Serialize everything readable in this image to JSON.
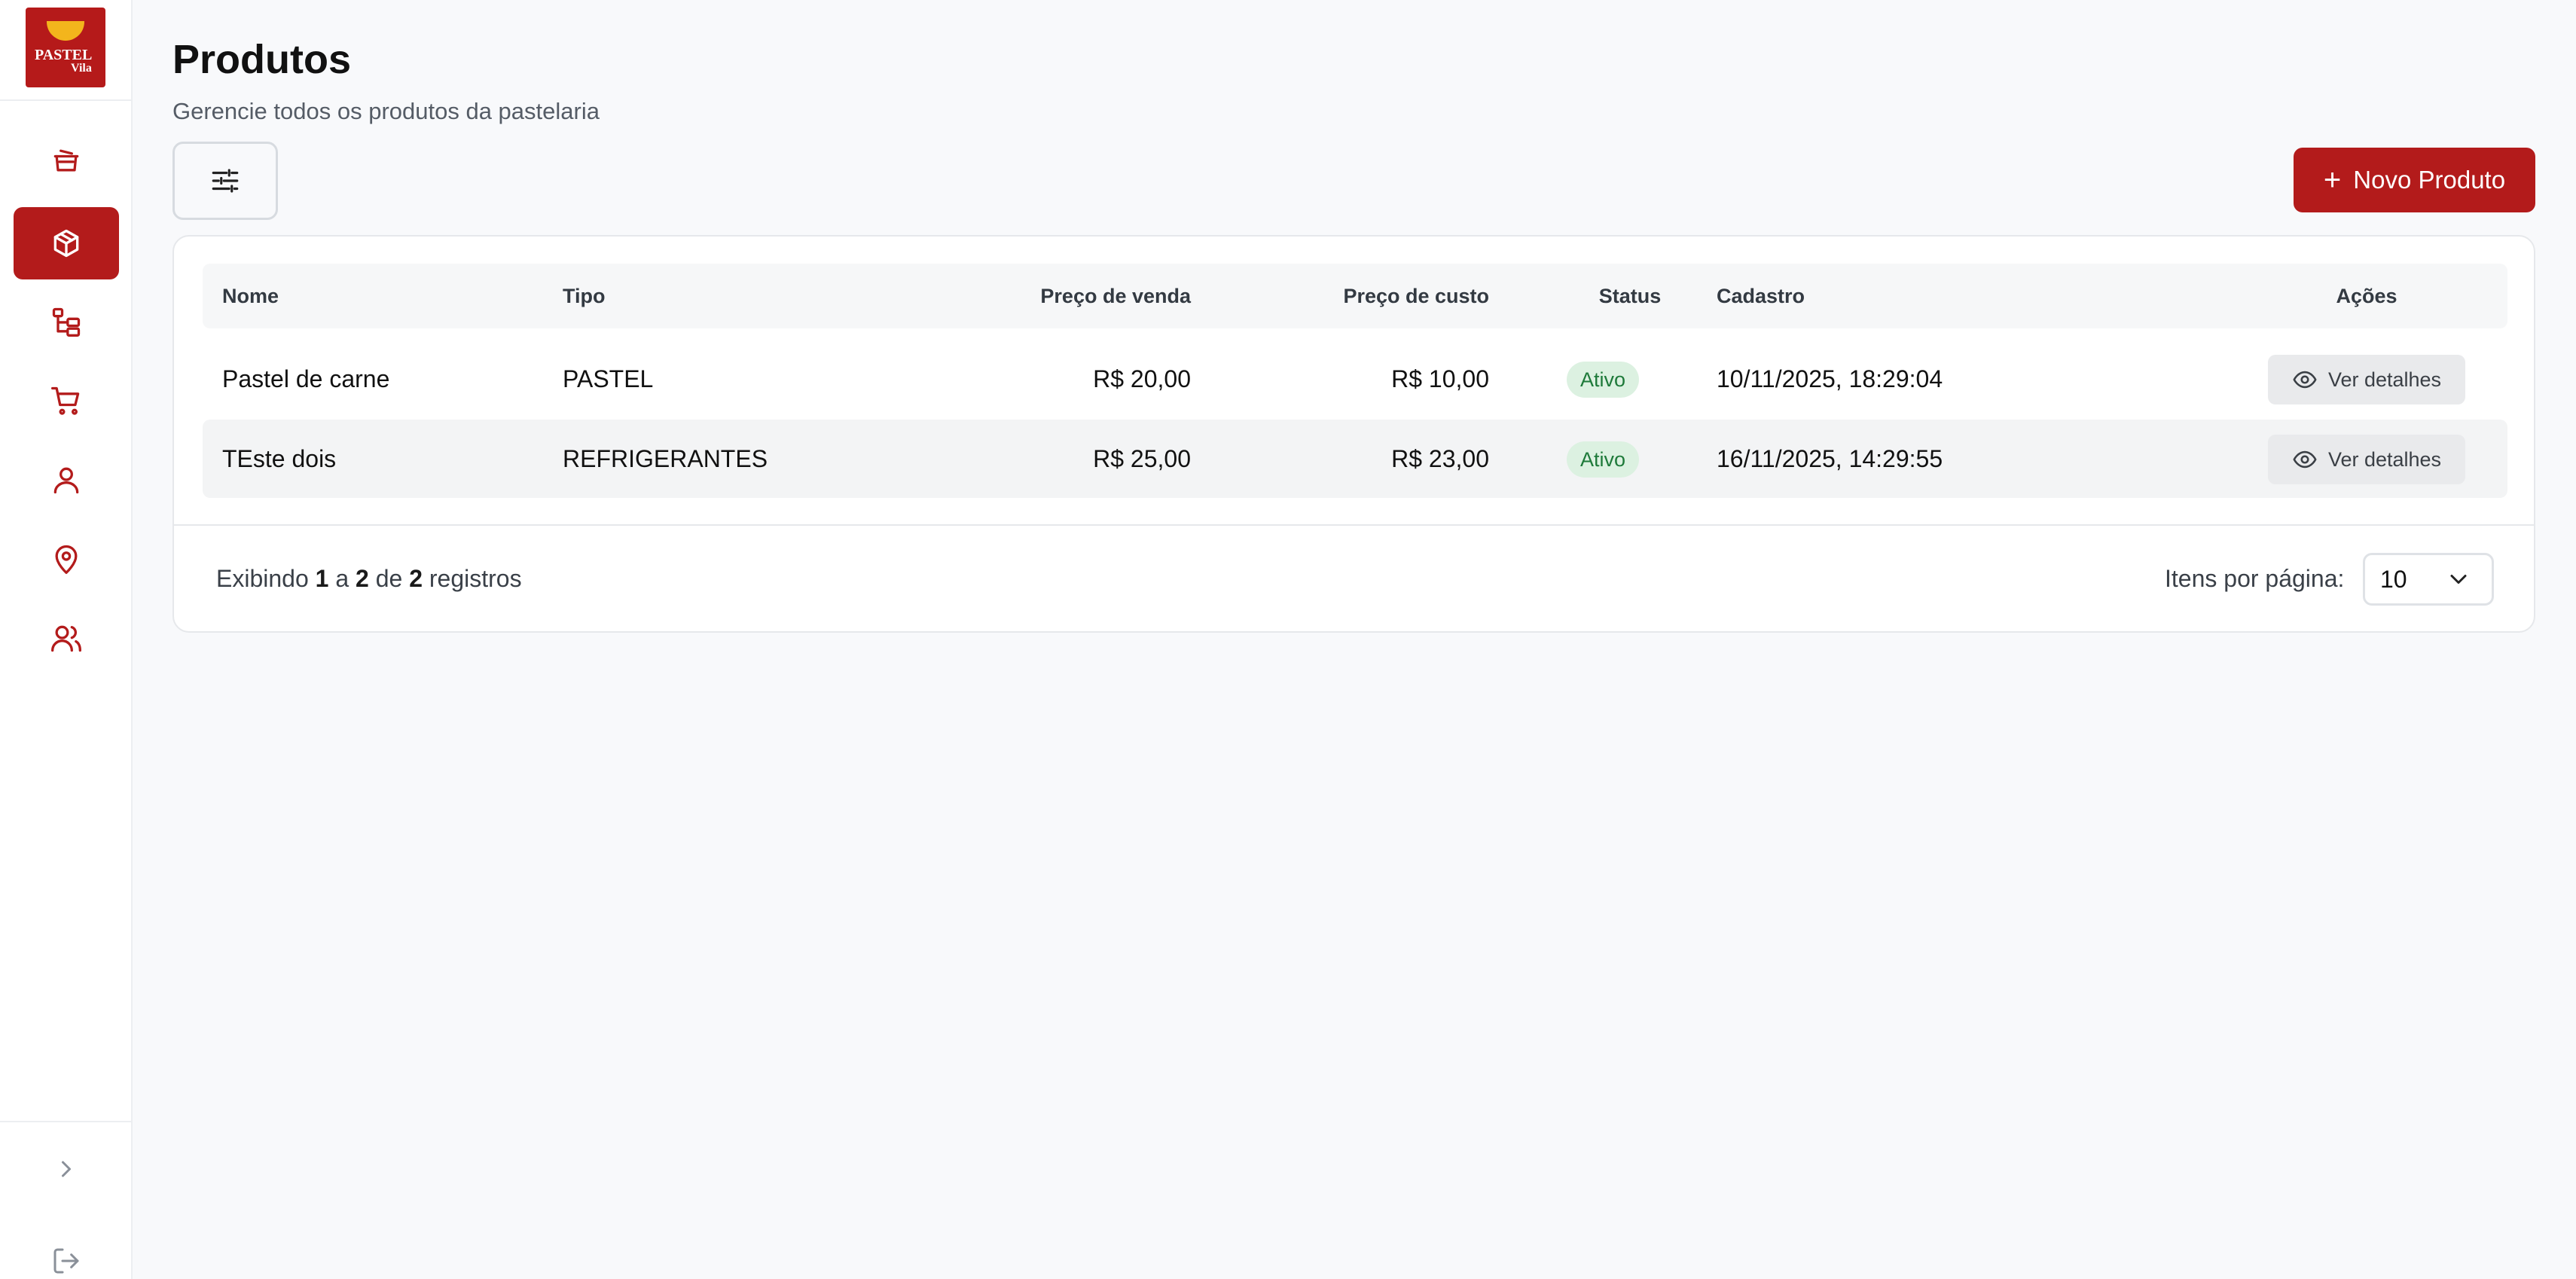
{
  "brand": {
    "logo_line1": "PASTEL",
    "logo_line2": "Vila",
    "primary_color": "#b31b1b",
    "accent_color": "#f3b51c"
  },
  "sidebar": {
    "items": [
      {
        "icon": "pot-icon",
        "active": false
      },
      {
        "icon": "box-icon",
        "active": true
      },
      {
        "icon": "category-tree-icon",
        "active": false
      },
      {
        "icon": "cart-icon",
        "active": false
      },
      {
        "icon": "user-icon",
        "active": false
      },
      {
        "icon": "map-pin-icon",
        "active": false
      },
      {
        "icon": "users-icon",
        "active": false
      }
    ],
    "bottom": [
      {
        "icon": "chevron-right-icon"
      },
      {
        "icon": "logout-icon"
      }
    ]
  },
  "header": {
    "title": "Produtos",
    "subtitle": "Gerencie todos os produtos da pastelaria"
  },
  "toolbar": {
    "filter_icon": "sliders-icon",
    "new_product_label": "Novo Produto"
  },
  "table": {
    "columns": [
      "Nome",
      "Tipo",
      "Preço de venda",
      "Preço de custo",
      "Status",
      "Cadastro",
      "Ações"
    ],
    "rows": [
      {
        "nome": "Pastel de carne",
        "tipo": "PASTEL",
        "preco_venda": "R$ 20,00",
        "preco_custo": "R$ 10,00",
        "status": "Ativo",
        "cadastro": "10/11/2025, 18:29:04",
        "acao": "Ver detalhes"
      },
      {
        "nome": "TEste dois",
        "tipo": "REFRIGERANTES",
        "preco_venda": "R$ 25,00",
        "preco_custo": "R$ 23,00",
        "status": "Ativo",
        "cadastro": "16/11/2025, 14:29:55",
        "acao": "Ver detalhes"
      }
    ],
    "status_color": "#1e7a3a"
  },
  "pagination": {
    "prefix": "Exibindo",
    "from": "1",
    "to_word": "a",
    "to": "2",
    "of_word": "de",
    "total": "2",
    "suffix": "registros",
    "per_page_label": "Itens por página:",
    "per_page_value": "10"
  }
}
